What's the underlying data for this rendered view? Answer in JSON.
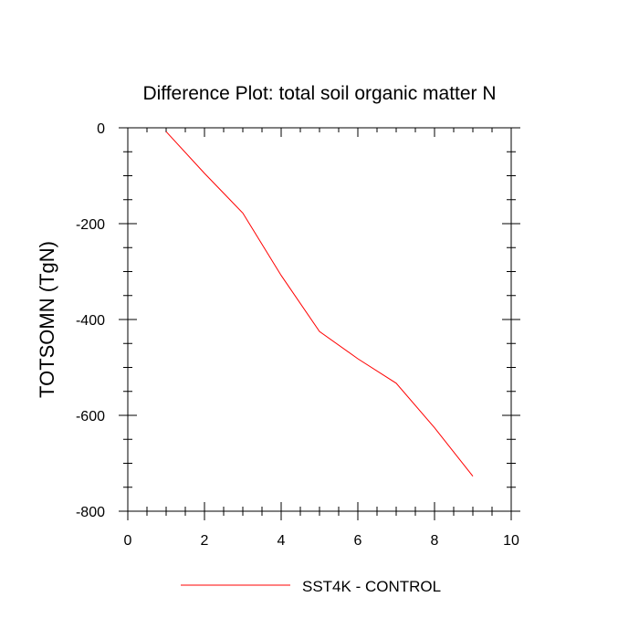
{
  "chart_data": {
    "type": "line",
    "title": "Difference Plot: total soil organic matter N",
    "xlabel": "",
    "ylabel": "TOTSOMN  (TgN)",
    "xlim": [
      0,
      10
    ],
    "ylim": [
      -800,
      0
    ],
    "x_ticks": [
      0,
      2,
      4,
      6,
      8,
      10
    ],
    "y_ticks": [
      0,
      -200,
      -400,
      -600,
      -800
    ],
    "x_tick_labels": [
      "0",
      "2",
      "4",
      "6",
      "8",
      "10"
    ],
    "y_tick_labels": [
      "0",
      "-200",
      "-400",
      "-600",
      "-800"
    ],
    "x_minor_step": 0.5,
    "y_minor_step": 50,
    "grid": false,
    "legend_position": "bottom-center",
    "series": [
      {
        "name": "SST4K - CONTROL",
        "color": "#ff0000",
        "x": [
          1,
          2,
          3,
          4,
          5,
          6,
          7,
          8,
          9
        ],
        "y": [
          -8,
          -95,
          -178,
          -308,
          -425,
          -482,
          -533,
          -626,
          -727
        ]
      }
    ]
  }
}
